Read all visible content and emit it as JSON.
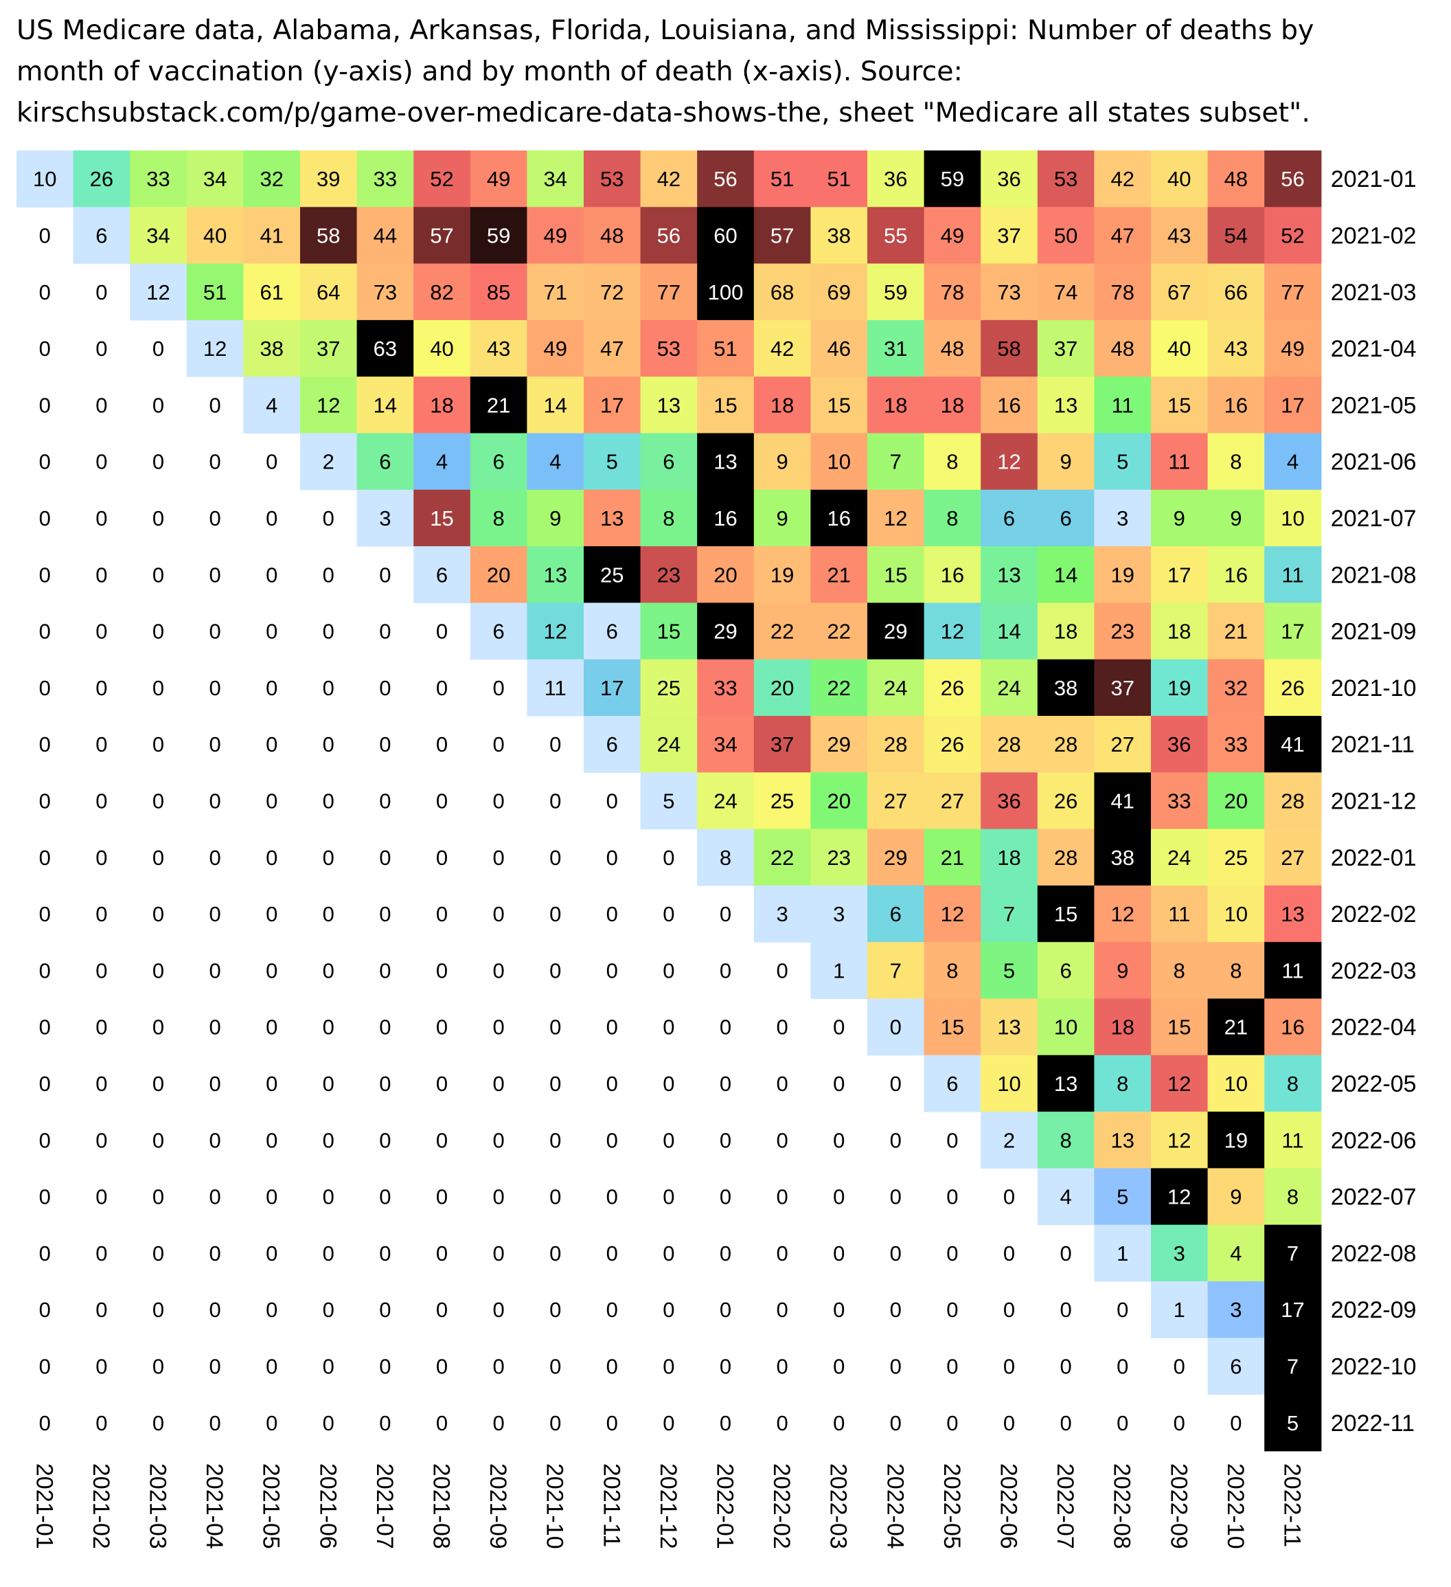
{
  "title": "US Medicare data, Alabama, Arkansas, Florida, Louisiana, and Mississippi: Number of deaths by\nmonth of vaccination (y-axis) and by month of death (x-axis). Source:\nkirschsubstack.com/p/game-over-medicare-data-shows-the, sheet \"Medicare all states subset\".",
  "chart_data": {
    "type": "heatmap",
    "title": "US Medicare data, Alabama, Arkansas, Florida, Louisiana, and Mississippi: Number of deaths by month of vaccination (y-axis) and by month of death (x-axis). Source: kirschsubstack.com/p/game-over-medicare-data-shows-the, sheet \"Medicare all states subset\".",
    "xlabel": "",
    "ylabel": "",
    "x": [
      "2021-01",
      "2021-02",
      "2021-03",
      "2021-04",
      "2021-05",
      "2021-06",
      "2021-07",
      "2021-08",
      "2021-09",
      "2021-10",
      "2021-11",
      "2021-12",
      "2022-01",
      "2022-02",
      "2022-03",
      "2022-04",
      "2022-05",
      "2022-06",
      "2022-07",
      "2022-08",
      "2022-09",
      "2022-10",
      "2022-11"
    ],
    "y": [
      "2021-01",
      "2021-02",
      "2021-03",
      "2021-04",
      "2021-05",
      "2021-06",
      "2021-07",
      "2021-08",
      "2021-09",
      "2021-10",
      "2021-11",
      "2021-12",
      "2022-01",
      "2022-02",
      "2022-03",
      "2022-04",
      "2022-05",
      "2022-06",
      "2022-07",
      "2022-08",
      "2022-09",
      "2022-10",
      "2022-11"
    ],
    "values": [
      [
        10,
        26,
        33,
        34,
        32,
        39,
        33,
        52,
        49,
        34,
        53,
        42,
        56,
        51,
        51,
        36,
        59,
        36,
        53,
        42,
        40,
        48,
        56
      ],
      [
        0,
        6,
        34,
        40,
        41,
        58,
        44,
        57,
        59,
        49,
        48,
        56,
        60,
        57,
        38,
        55,
        49,
        37,
        50,
        47,
        43,
        54,
        52
      ],
      [
        0,
        0,
        12,
        51,
        61,
        64,
        73,
        82,
        85,
        71,
        72,
        77,
        100,
        68,
        69,
        59,
        78,
        73,
        74,
        78,
        67,
        66,
        77
      ],
      [
        0,
        0,
        0,
        12,
        38,
        37,
        63,
        40,
        43,
        49,
        47,
        53,
        51,
        42,
        46,
        31,
        48,
        58,
        37,
        48,
        40,
        43,
        49
      ],
      [
        0,
        0,
        0,
        0,
        4,
        12,
        14,
        18,
        21,
        14,
        17,
        13,
        15,
        18,
        15,
        18,
        18,
        16,
        13,
        11,
        15,
        16,
        17
      ],
      [
        0,
        0,
        0,
        0,
        0,
        2,
        6,
        4,
        6,
        4,
        5,
        6,
        13,
        9,
        10,
        7,
        8,
        12,
        9,
        5,
        11,
        8,
        4
      ],
      [
        0,
        0,
        0,
        0,
        0,
        0,
        3,
        15,
        8,
        9,
        13,
        8,
        16,
        9,
        16,
        12,
        8,
        6,
        6,
        3,
        9,
        9,
        10
      ],
      [
        0,
        0,
        0,
        0,
        0,
        0,
        0,
        6,
        20,
        13,
        25,
        23,
        20,
        19,
        21,
        15,
        16,
        13,
        14,
        19,
        17,
        16,
        11
      ],
      [
        0,
        0,
        0,
        0,
        0,
        0,
        0,
        0,
        6,
        12,
        6,
        15,
        29,
        22,
        22,
        29,
        12,
        14,
        18,
        23,
        18,
        21,
        17
      ],
      [
        0,
        0,
        0,
        0,
        0,
        0,
        0,
        0,
        0,
        11,
        17,
        25,
        33,
        20,
        22,
        24,
        26,
        24,
        38,
        37,
        19,
        32,
        26
      ],
      [
        0,
        0,
        0,
        0,
        0,
        0,
        0,
        0,
        0,
        0,
        6,
        24,
        34,
        37,
        29,
        28,
        26,
        28,
        28,
        27,
        36,
        33,
        41
      ],
      [
        0,
        0,
        0,
        0,
        0,
        0,
        0,
        0,
        0,
        0,
        0,
        5,
        24,
        25,
        20,
        27,
        27,
        36,
        26,
        41,
        33,
        20,
        28
      ],
      [
        0,
        0,
        0,
        0,
        0,
        0,
        0,
        0,
        0,
        0,
        0,
        0,
        8,
        22,
        23,
        29,
        21,
        18,
        28,
        38,
        24,
        25,
        27
      ],
      [
        0,
        0,
        0,
        0,
        0,
        0,
        0,
        0,
        0,
        0,
        0,
        0,
        0,
        3,
        3,
        6,
        12,
        7,
        15,
        12,
        11,
        10,
        13
      ],
      [
        0,
        0,
        0,
        0,
        0,
        0,
        0,
        0,
        0,
        0,
        0,
        0,
        0,
        0,
        1,
        7,
        8,
        5,
        6,
        9,
        8,
        8,
        11
      ],
      [
        0,
        0,
        0,
        0,
        0,
        0,
        0,
        0,
        0,
        0,
        0,
        0,
        0,
        0,
        0,
        0,
        15,
        13,
        10,
        18,
        15,
        21,
        16
      ],
      [
        0,
        0,
        0,
        0,
        0,
        0,
        0,
        0,
        0,
        0,
        0,
        0,
        0,
        0,
        0,
        0,
        6,
        10,
        13,
        8,
        12,
        10,
        8
      ],
      [
        0,
        0,
        0,
        0,
        0,
        0,
        0,
        0,
        0,
        0,
        0,
        0,
        0,
        0,
        0,
        0,
        0,
        2,
        8,
        13,
        12,
        19,
        11
      ],
      [
        0,
        0,
        0,
        0,
        0,
        0,
        0,
        0,
        0,
        0,
        0,
        0,
        0,
        0,
        0,
        0,
        0,
        0,
        4,
        5,
        12,
        9,
        8
      ],
      [
        0,
        0,
        0,
        0,
        0,
        0,
        0,
        0,
        0,
        0,
        0,
        0,
        0,
        0,
        0,
        0,
        0,
        0,
        0,
        1,
        3,
        4,
        7
      ],
      [
        0,
        0,
        0,
        0,
        0,
        0,
        0,
        0,
        0,
        0,
        0,
        0,
        0,
        0,
        0,
        0,
        0,
        0,
        0,
        0,
        1,
        3,
        17
      ],
      [
        0,
        0,
        0,
        0,
        0,
        0,
        0,
        0,
        0,
        0,
        0,
        0,
        0,
        0,
        0,
        0,
        0,
        0,
        0,
        0,
        0,
        6,
        7
      ],
      [
        0,
        0,
        0,
        0,
        0,
        0,
        0,
        0,
        0,
        0,
        0,
        0,
        0,
        0,
        0,
        0,
        0,
        0,
        0,
        0,
        0,
        0,
        5
      ]
    ],
    "colorscale": "per-row: light blue (low) → cyan → green → yellow → orange → red → dark red → black (row max); cells below the diagonal are white",
    "legend": "none",
    "grid": false
  }
}
